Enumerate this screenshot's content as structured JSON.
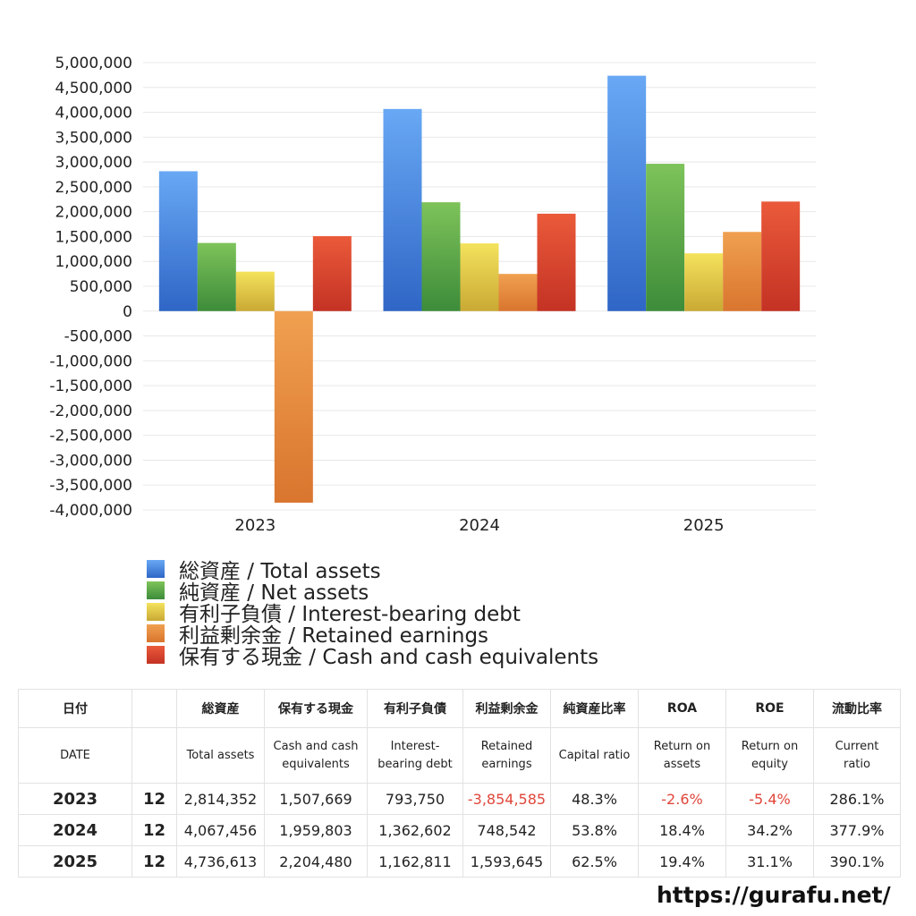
{
  "chart_data": {
    "type": "bar",
    "categories": [
      "2023",
      "2024",
      "2025"
    ],
    "series": [
      {
        "name": "総資産 / Total assets",
        "values": [
          2814352,
          4067456,
          4736613
        ],
        "color_top": "#68a8f4",
        "color_bottom": "#2f66c6"
      },
      {
        "name": "純資産 / Net assets",
        "values": [
          1371000,
          2190000,
          2965000
        ],
        "color_top": "#7ec35a",
        "color_bottom": "#3d8c3a"
      },
      {
        "name": "有利子負債 / Interest-bearing debt",
        "values": [
          793750,
          1362602,
          1162811
        ],
        "color_top": "#f4e25c",
        "color_bottom": "#c9a934"
      },
      {
        "name": "利益剰余金 / Retained earnings",
        "values": [
          -3854585,
          748542,
          1593645
        ],
        "color_top": "#f0a050",
        "color_bottom": "#d9752e"
      },
      {
        "name": "保有する現金 /  Cash and cash equivalents",
        "values": [
          1507669,
          1959803,
          2204480
        ],
        "color_top": "#ea5a3a",
        "color_bottom": "#c43224"
      }
    ],
    "ylim": [
      -4000000,
      5000000
    ],
    "ytick_step": 500000,
    "yticks": [
      "5,000,000",
      "4,500,000",
      "4,000,000",
      "3,500,000",
      "3,000,000",
      "2,500,000",
      "2,000,000",
      "1,500,000",
      "1,000,000",
      "500,000",
      "0",
      "-500,000",
      "-1,000,000",
      "-1,500,000",
      "-2,000,000",
      "-2,500,000",
      "-3,000,000",
      "-3,500,000",
      "-4,000,000"
    ],
    "grid": true,
    "legend": "bottom"
  },
  "table": {
    "header_jp": [
      "日付",
      "",
      "総資産",
      "保有する現金",
      "有利子負債",
      "利益剰余金",
      "純資産比率",
      "ROA",
      "ROE",
      "流動比率"
    ],
    "header_en": [
      "DATE",
      "",
      "Total assets",
      "Cash and cash equivalents",
      "Interest-bearing debt",
      "Retained earnings",
      "Capital ratio",
      "Return on assets",
      "Return on equity",
      "Current ratio"
    ],
    "rows": [
      {
        "year": "2023",
        "month": "12",
        "total_assets": "2,814,352",
        "cash": "1,507,669",
        "debt": "793,750",
        "retained": "-3,854,585",
        "capital_ratio": "48.3%",
        "roa": "-2.6%",
        "roe": "-5.4%",
        "current_ratio": "286.1%"
      },
      {
        "year": "2024",
        "month": "12",
        "total_assets": "4,067,456",
        "cash": "1,959,803",
        "debt": "1,362,602",
        "retained": "748,542",
        "capital_ratio": "53.8%",
        "roa": "18.4%",
        "roe": "34.2%",
        "current_ratio": "377.9%"
      },
      {
        "year": "2025",
        "month": "12",
        "total_assets": "4,736,613",
        "cash": "2,204,480",
        "debt": "1,162,811",
        "retained": "1,593,645",
        "capital_ratio": "62.5%",
        "roa": "19.4%",
        "roe": "31.1%",
        "current_ratio": "390.1%"
      }
    ]
  },
  "footer": {
    "url": "https://gurafu.net/"
  }
}
